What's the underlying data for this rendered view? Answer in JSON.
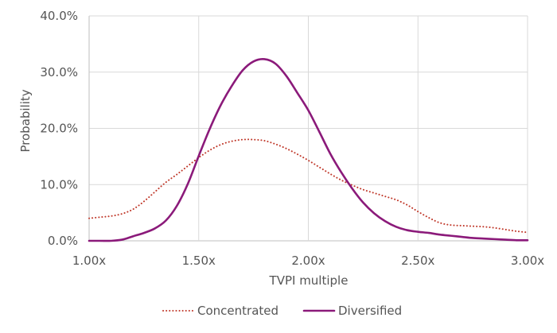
{
  "chart_data": {
    "type": "line",
    "xlabel": "TVPI multiple",
    "ylabel": "Probability",
    "xlim": [
      1.0,
      3.0
    ],
    "ylim": [
      0,
      0.4
    ],
    "x_ticks": [
      1.0,
      1.5,
      2.0,
      2.5,
      3.0
    ],
    "x_tick_labels": [
      "1.00x",
      "1.50x",
      "2.00x",
      "2.50x",
      "3.00x"
    ],
    "y_ticks": [
      0,
      0.1,
      0.2,
      0.3,
      0.4
    ],
    "y_tick_labels": [
      "0.0%",
      "10.0%",
      "20.0%",
      "30.0%",
      "40.0%"
    ],
    "grid": true,
    "legend": {
      "position": "bottom"
    },
    "series": [
      {
        "name": "Concentrated",
        "color": "#c0392b",
        "style": "dotted",
        "points": [
          [
            1.0,
            0.04
          ],
          [
            1.05,
            0.042
          ],
          [
            1.1,
            0.044
          ],
          [
            1.15,
            0.048
          ],
          [
            1.2,
            0.056
          ],
          [
            1.25,
            0.07
          ],
          [
            1.3,
            0.087
          ],
          [
            1.35,
            0.104
          ],
          [
            1.4,
            0.118
          ],
          [
            1.45,
            0.133
          ],
          [
            1.5,
            0.148
          ],
          [
            1.55,
            0.161
          ],
          [
            1.6,
            0.171
          ],
          [
            1.65,
            0.177
          ],
          [
            1.7,
            0.18
          ],
          [
            1.75,
            0.18
          ],
          [
            1.8,
            0.178
          ],
          [
            1.85,
            0.172
          ],
          [
            1.9,
            0.164
          ],
          [
            1.95,
            0.154
          ],
          [
            2.0,
            0.143
          ],
          [
            2.05,
            0.131
          ],
          [
            2.1,
            0.119
          ],
          [
            2.15,
            0.108
          ],
          [
            2.2,
            0.099
          ],
          [
            2.25,
            0.091
          ],
          [
            2.3,
            0.085
          ],
          [
            2.35,
            0.079
          ],
          [
            2.4,
            0.073
          ],
          [
            2.45,
            0.064
          ],
          [
            2.5,
            0.052
          ],
          [
            2.55,
            0.041
          ],
          [
            2.6,
            0.032
          ],
          [
            2.65,
            0.028
          ],
          [
            2.7,
            0.027
          ],
          [
            2.75,
            0.026
          ],
          [
            2.8,
            0.025
          ],
          [
            2.85,
            0.023
          ],
          [
            2.9,
            0.02
          ],
          [
            2.95,
            0.017
          ],
          [
            3.0,
            0.015
          ]
        ]
      },
      {
        "name": "Diversified",
        "color": "#8b1a7a",
        "style": "solid",
        "points": [
          [
            1.0,
            0.0
          ],
          [
            1.05,
            0.0
          ],
          [
            1.1,
            0.0
          ],
          [
            1.15,
            0.002
          ],
          [
            1.2,
            0.008
          ],
          [
            1.25,
            0.014
          ],
          [
            1.3,
            0.022
          ],
          [
            1.35,
            0.036
          ],
          [
            1.4,
            0.062
          ],
          [
            1.45,
            0.101
          ],
          [
            1.5,
            0.151
          ],
          [
            1.55,
            0.199
          ],
          [
            1.6,
            0.241
          ],
          [
            1.65,
            0.275
          ],
          [
            1.7,
            0.303
          ],
          [
            1.75,
            0.319
          ],
          [
            1.8,
            0.323
          ],
          [
            1.85,
            0.315
          ],
          [
            1.9,
            0.293
          ],
          [
            1.95,
            0.263
          ],
          [
            2.0,
            0.232
          ],
          [
            2.05,
            0.194
          ],
          [
            2.1,
            0.155
          ],
          [
            2.15,
            0.122
          ],
          [
            2.2,
            0.093
          ],
          [
            2.25,
            0.068
          ],
          [
            2.3,
            0.049
          ],
          [
            2.35,
            0.035
          ],
          [
            2.4,
            0.025
          ],
          [
            2.45,
            0.019
          ],
          [
            2.5,
            0.016
          ],
          [
            2.55,
            0.014
          ],
          [
            2.6,
            0.011
          ],
          [
            2.65,
            0.009
          ],
          [
            2.7,
            0.007
          ],
          [
            2.75,
            0.005
          ],
          [
            2.8,
            0.004
          ],
          [
            2.85,
            0.003
          ],
          [
            2.9,
            0.002
          ],
          [
            2.95,
            0.001
          ],
          [
            3.0,
            0.001
          ]
        ]
      }
    ]
  }
}
